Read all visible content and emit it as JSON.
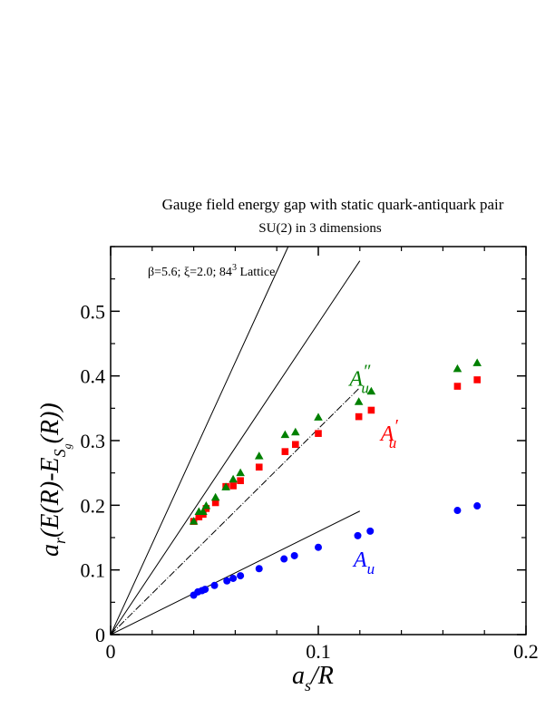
{
  "chart_data": {
    "type": "scatter",
    "title": "Gauge field energy gap with static quark-antiquark pair",
    "subtitle": "SU(2) in 3 dimensions",
    "annotation": "β=5.6; ξ=2.0; 84",
    "annotation_sup": "3",
    "annotation_tail": " Lattice",
    "xlabel": {
      "a": "a",
      "sub": "s",
      "rest": "/R"
    },
    "ylabel": {
      "a": "a",
      "sub": "r",
      "mid": "(E(R)-E",
      "S": "S",
      "g": "g",
      "tail": "(R))"
    },
    "xlim": [
      0,
      0.2
    ],
    "ylim": [
      0,
      0.6
    ],
    "x_ticks": [
      {
        "value": 0,
        "label": "0"
      },
      {
        "value": 0.1,
        "label": "0.1"
      },
      {
        "value": 0.2,
        "label": "0.2"
      }
    ],
    "y_ticks": [
      {
        "value": 0,
        "label": "0"
      },
      {
        "value": 0.1,
        "label": "0.1"
      },
      {
        "value": 0.2,
        "label": "0.2"
      },
      {
        "value": 0.3,
        "label": "0.3"
      },
      {
        "value": 0.4,
        "label": "0.4"
      },
      {
        "value": 0.5,
        "label": "0.5"
      }
    ],
    "x_minor_step": 0.02,
    "y_minor_step": 0.05,
    "grid": false,
    "series": [
      {
        "name": "A_u",
        "label_main": "A",
        "label_sub": "u",
        "label_prime": "",
        "color": "#0000ff",
        "marker": "circle",
        "label_at": {
          "x": 0.117,
          "y": 0.105
        },
        "points": [
          [
            0.04,
            0.061
          ],
          [
            0.042,
            0.066
          ],
          [
            0.044,
            0.068
          ],
          [
            0.0455,
            0.07
          ],
          [
            0.05,
            0.076
          ],
          [
            0.056,
            0.083
          ],
          [
            0.059,
            0.087
          ],
          [
            0.0625,
            0.091
          ],
          [
            0.0715,
            0.102
          ],
          [
            0.0835,
            0.117
          ],
          [
            0.0885,
            0.122
          ],
          [
            0.1,
            0.135
          ],
          [
            0.119,
            0.153
          ],
          [
            0.125,
            0.16
          ],
          [
            0.167,
            0.192
          ],
          [
            0.1765,
            0.199
          ]
        ]
      },
      {
        "name": "A'_u",
        "label_main": "A",
        "label_sub": "u",
        "label_prime": "′",
        "color": "#ff0000",
        "marker": "square",
        "label_at": {
          "x": 0.13,
          "y": 0.3
        },
        "points": [
          [
            0.04,
            0.175
          ],
          [
            0.0425,
            0.182
          ],
          [
            0.0445,
            0.186
          ],
          [
            0.046,
            0.195
          ],
          [
            0.0505,
            0.204
          ],
          [
            0.0555,
            0.229
          ],
          [
            0.059,
            0.23
          ],
          [
            0.0625,
            0.238
          ],
          [
            0.0715,
            0.259
          ],
          [
            0.084,
            0.283
          ],
          [
            0.089,
            0.294
          ],
          [
            0.1,
            0.311
          ],
          [
            0.1195,
            0.337
          ],
          [
            0.1255,
            0.347
          ],
          [
            0.167,
            0.384
          ],
          [
            0.1765,
            0.394
          ]
        ]
      },
      {
        "name": "A''_u",
        "label_main": "A",
        "label_sub": "u",
        "label_prime": "″",
        "color": "#008000",
        "marker": "triangle",
        "label_at": {
          "x": 0.115,
          "y": 0.385
        },
        "points": [
          [
            0.04,
            0.175
          ],
          [
            0.0425,
            0.19
          ],
          [
            0.0445,
            0.19
          ],
          [
            0.046,
            0.199
          ],
          [
            0.0505,
            0.212
          ],
          [
            0.0555,
            0.228
          ],
          [
            0.059,
            0.24
          ],
          [
            0.0625,
            0.25
          ],
          [
            0.0715,
            0.276
          ],
          [
            0.084,
            0.309
          ],
          [
            0.089,
            0.313
          ],
          [
            0.1,
            0.336
          ],
          [
            0.1195,
            0.36
          ],
          [
            0.1255,
            0.376
          ],
          [
            0.167,
            0.411
          ],
          [
            0.1765,
            0.42
          ]
        ]
      }
    ],
    "reference_lines": [
      {
        "name": "line-1",
        "from": [
          0,
          0
        ],
        "to": [
          0.0855,
          0.6
        ],
        "style": "solid"
      },
      {
        "name": "line-2",
        "from": [
          0,
          0
        ],
        "to": [
          0.12,
          0.578
        ],
        "style": "solid"
      },
      {
        "name": "line-3",
        "from": [
          0,
          0
        ],
        "to": [
          0.12,
          0.382
        ],
        "style": "dashdot"
      },
      {
        "name": "line-4",
        "from": [
          0,
          0
        ],
        "to": [
          0.12,
          0.191
        ],
        "style": "solid"
      }
    ]
  }
}
